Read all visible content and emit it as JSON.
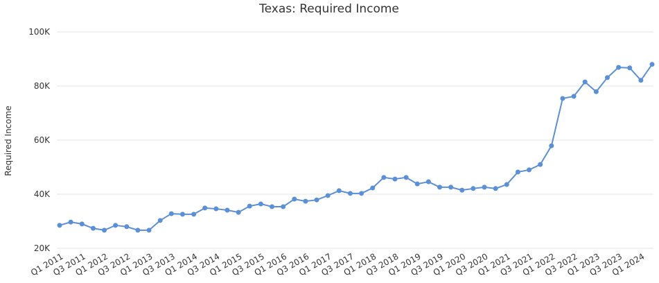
{
  "chart_data": {
    "type": "line",
    "title": "Texas: Required Income",
    "y_label": "Required Income",
    "categories": [
      "Q1 2011",
      null,
      "Q3 2011",
      null,
      "Q1 2012",
      null,
      "Q3 2012",
      null,
      "Q1 2013",
      null,
      "Q3 2013",
      null,
      "Q1 2014",
      null,
      "Q3 2014",
      null,
      "Q1 2015",
      null,
      "Q3 2015",
      null,
      "Q1 2016",
      null,
      "Q3 2016",
      null,
      "Q1 2017",
      null,
      "Q3 2017",
      null,
      "Q1 2018",
      null,
      "Q3 2018",
      null,
      "Q1 2019",
      null,
      "Q3 2019",
      null,
      "Q1 2020",
      null,
      "Q3 2020",
      null,
      "Q1 2021",
      null,
      "Q3 2021",
      null,
      "Q1 2022",
      null,
      "Q3 2022",
      null,
      "Q1 2023",
      null,
      "Q3 2023",
      null,
      "Q1 2024",
      null
    ],
    "series": [
      {
        "name": "Required Income",
        "color": "#5b8fd6",
        "values": [
          28500,
          29700,
          29000,
          27400,
          26700,
          28500,
          28000,
          26700,
          26700,
          30300,
          32800,
          32600,
          32600,
          34900,
          34600,
          34100,
          33300,
          35600,
          36400,
          35400,
          35400,
          38200,
          37400,
          37900,
          39500,
          41300,
          40300,
          40300,
          42300,
          46200,
          45600,
          46200,
          43800,
          44600,
          42600,
          42600,
          41500,
          42100,
          42600,
          42100,
          43600,
          48200,
          49000,
          51000,
          57900,
          75400,
          76200,
          81500,
          77900,
          83100,
          86900,
          86700,
          82100,
          88000
        ]
      }
    ],
    "ylim": [
      20000,
      100000
    ],
    "yticks": [
      {
        "value": 20000,
        "label": "20K"
      },
      {
        "value": 40000,
        "label": "40K"
      },
      {
        "value": 60000,
        "label": "60K"
      },
      {
        "value": 80000,
        "label": "80K"
      },
      {
        "value": 100000,
        "label": "100K"
      }
    ],
    "grid": true
  }
}
